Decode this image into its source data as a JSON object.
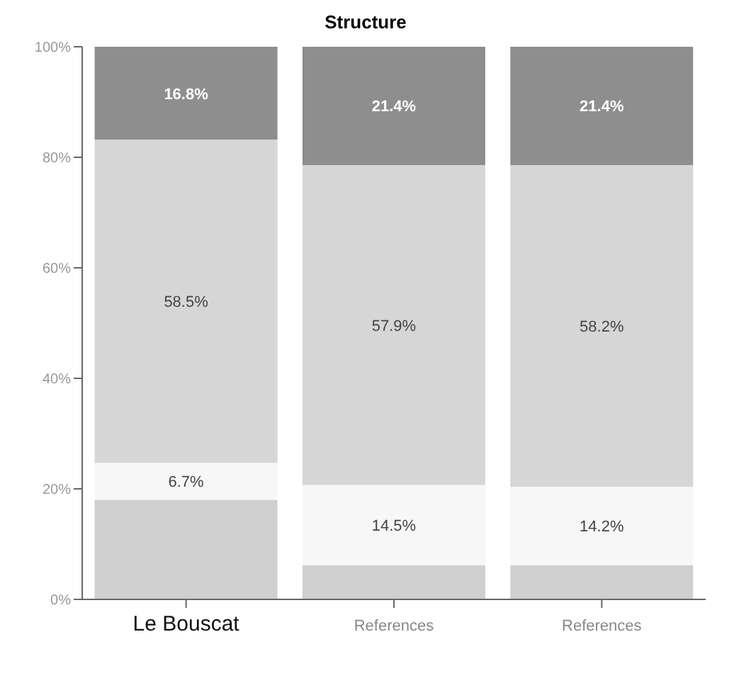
{
  "chart_data": {
    "type": "bar",
    "title": "Structure",
    "stacked": true,
    "categories": [
      "Le Bouscat",
      "References",
      "References"
    ],
    "series": [
      {
        "color": "#cfcfcf",
        "values": [
          18.0,
          6.2,
          6.2
        ],
        "value_labels": [
          null,
          null,
          null
        ]
      },
      {
        "color": "#f7f7f7",
        "values": [
          6.7,
          14.5,
          14.2
        ],
        "value_labels": [
          "6.7%",
          "14.5%",
          "14.2%"
        ]
      },
      {
        "color": "#d6d6d6",
        "values": [
          58.5,
          57.9,
          58.2
        ],
        "value_labels": [
          "58.5%",
          "57.9%",
          "58.2%"
        ]
      },
      {
        "color": "#8e8e8e",
        "values": [
          16.8,
          21.4,
          21.4
        ],
        "value_labels": [
          "16.8%",
          "21.4%",
          "21.4%"
        ]
      }
    ],
    "ylim": [
      0,
      100
    ],
    "yticks": [
      {
        "value": 0,
        "label": "0%"
      },
      {
        "value": 20,
        "label": "20%"
      },
      {
        "value": 40,
        "label": "40%"
      },
      {
        "value": 60,
        "label": "60%"
      },
      {
        "value": 80,
        "label": "80%"
      },
      {
        "value": 100,
        "label": "100%"
      }
    ]
  }
}
